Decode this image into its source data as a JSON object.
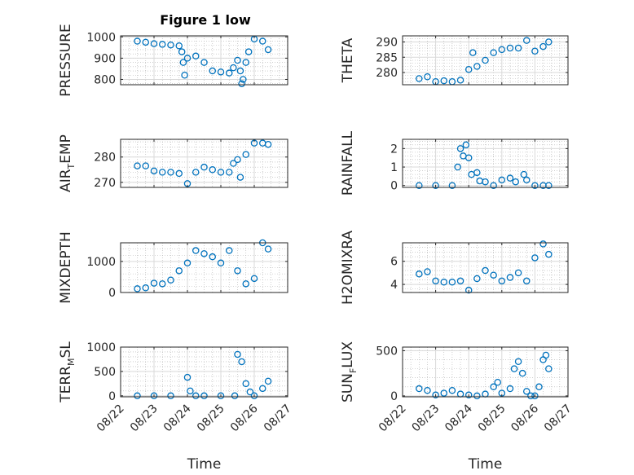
{
  "title": "Figure 1 low",
  "colors": {
    "marker": "#0072BD",
    "axis": "#262626",
    "grid": "#b0b0b0"
  },
  "time_ticks": [
    "08/22",
    "08/23",
    "08/24",
    "08/25",
    "08/26",
    "08/27"
  ],
  "time_label": "Time",
  "chart_data": [
    {
      "type": "scatter",
      "ylabel": "PRESSURE",
      "yticks": [
        800,
        900,
        1000
      ],
      "ylim": [
        775,
        1005
      ],
      "grid": true,
      "x": [
        "08/22 12:00",
        "08/22 18:00",
        "08/23 00:00",
        "08/23 06:00",
        "08/23 12:00",
        "08/23 18:00",
        "08/23 20:00",
        "08/23 21:00",
        "08/23 22:00",
        "08/24 00:00",
        "08/24 06:00",
        "08/24 12:00",
        "08/24 18:00",
        "08/25 00:00",
        "08/25 06:00",
        "08/25 09:00",
        "08/25 12:00",
        "08/25 14:00",
        "08/25 15:00",
        "08/25 16:00",
        "08/25 18:00",
        "08/25 20:00",
        "08/26 00:00",
        "08/26 06:00",
        "08/26 10:00"
      ],
      "y": [
        980,
        975,
        968,
        965,
        962,
        958,
        930,
        880,
        820,
        900,
        910,
        880,
        840,
        835,
        830,
        855,
        890,
        840,
        780,
        800,
        880,
        930,
        990,
        980,
        940
      ]
    },
    {
      "type": "scatter",
      "ylabel": "THETA",
      "yticks": [
        280,
        285,
        290
      ],
      "ylim": [
        276,
        292
      ],
      "grid": true,
      "x": [
        "08/22 12:00",
        "08/22 18:00",
        "08/23 00:00",
        "08/23 06:00",
        "08/23 12:00",
        "08/23 18:00",
        "08/24 00:00",
        "08/24 03:00",
        "08/24 06:00",
        "08/24 12:00",
        "08/24 18:00",
        "08/25 00:00",
        "08/25 06:00",
        "08/25 12:00",
        "08/25 18:00",
        "08/26 00:00",
        "08/26 06:00",
        "08/26 10:00"
      ],
      "y": [
        278,
        278.6,
        277,
        277.3,
        277,
        277.5,
        281,
        286.5,
        282,
        284,
        286.5,
        287.5,
        288,
        288,
        290.5,
        287,
        288.5,
        290
      ]
    },
    {
      "type": "scatter",
      "ylabel": "AIR_TEMP",
      "yticks": [
        270,
        280
      ],
      "ylim": [
        268,
        287
      ],
      "grid": true,
      "x": [
        "08/22 12:00",
        "08/22 18:00",
        "08/23 00:00",
        "08/23 06:00",
        "08/23 12:00",
        "08/23 18:00",
        "08/24 00:00",
        "08/24 06:00",
        "08/24 12:00",
        "08/24 18:00",
        "08/25 00:00",
        "08/25 06:00",
        "08/25 09:00",
        "08/25 12:00",
        "08/25 14:00",
        "08/25 18:00",
        "08/26 00:00",
        "08/26 06:00",
        "08/26 10:00"
      ],
      "y": [
        276.5,
        276.5,
        274.5,
        274,
        274,
        273.5,
        269.5,
        274,
        276,
        275,
        274,
        274,
        277.5,
        279,
        272,
        281,
        285.5,
        285.5,
        285
      ]
    },
    {
      "type": "scatter",
      "ylabel": "RAINFALL",
      "yticks": [
        0,
        1,
        2
      ],
      "ylim": [
        -0.1,
        2.5
      ],
      "grid": true,
      "x": [
        "08/22 12:00",
        "08/23 00:00",
        "08/23 12:00",
        "08/23 16:00",
        "08/23 18:00",
        "08/23 20:00",
        "08/23 22:00",
        "08/24 00:00",
        "08/24 02:00",
        "08/24 06:00",
        "08/24 08:00",
        "08/24 12:00",
        "08/24 18:00",
        "08/25 00:00",
        "08/25 06:00",
        "08/25 10:00",
        "08/25 16:00",
        "08/25 18:00",
        "08/26 00:00",
        "08/26 06:00",
        "08/26 10:00"
      ],
      "y": [
        0,
        0,
        0,
        1,
        2,
        1.6,
        2.2,
        1.5,
        0.6,
        0.7,
        0.25,
        0.2,
        0,
        0.3,
        0.4,
        0.2,
        0.6,
        0.3,
        0,
        0,
        0
      ]
    },
    {
      "type": "scatter",
      "ylabel": "MIXDEPTH",
      "yticks": [
        0,
        1000
      ],
      "ylim": [
        0,
        1600
      ],
      "grid": true,
      "x": [
        "08/22 12:00",
        "08/22 18:00",
        "08/23 00:00",
        "08/23 06:00",
        "08/23 12:00",
        "08/23 18:00",
        "08/24 00:00",
        "08/24 06:00",
        "08/24 12:00",
        "08/24 18:00",
        "08/25 00:00",
        "08/25 06:00",
        "08/25 12:00",
        "08/25 18:00",
        "08/26 00:00",
        "08/26 06:00",
        "08/26 10:00"
      ],
      "y": [
        120,
        150,
        300,
        280,
        400,
        700,
        950,
        1350,
        1250,
        1150,
        950,
        1350,
        700,
        280,
        450,
        1600,
        1400
      ]
    },
    {
      "type": "scatter",
      "ylabel": "H2OMIXRA",
      "yticks": [
        4,
        6
      ],
      "ylim": [
        3.3,
        7.6
      ],
      "grid": true,
      "x": [
        "08/22 12:00",
        "08/22 18:00",
        "08/23 00:00",
        "08/23 06:00",
        "08/23 12:00",
        "08/23 18:00",
        "08/24 00:00",
        "08/24 06:00",
        "08/24 12:00",
        "08/24 18:00",
        "08/25 00:00",
        "08/25 06:00",
        "08/25 12:00",
        "08/25 18:00",
        "08/26 00:00",
        "08/26 06:00",
        "08/26 10:00"
      ],
      "y": [
        4.9,
        5.1,
        4.3,
        4.2,
        4.2,
        4.3,
        3.5,
        4.5,
        5.2,
        4.8,
        4.3,
        4.6,
        5,
        4.3,
        6.3,
        7.5,
        6.6
      ]
    },
    {
      "type": "scatter",
      "ylabel": "TERR_MSL",
      "yticks": [
        0,
        500,
        1000
      ],
      "ylim": [
        -20,
        1000
      ],
      "grid": true,
      "x": [
        "08/22 12:00",
        "08/23 00:00",
        "08/23 12:00",
        "08/24 00:00",
        "08/24 02:00",
        "08/24 06:00",
        "08/24 12:00",
        "08/25 00:00",
        "08/25 10:00",
        "08/25 12:00",
        "08/25 15:00",
        "08/25 18:00",
        "08/25 21:00",
        "08/26 00:00",
        "08/26 06:00",
        "08/26 10:00"
      ],
      "y": [
        0,
        0,
        0,
        380,
        100,
        0,
        0,
        0,
        0,
        850,
        700,
        250,
        80,
        0,
        150,
        300
      ]
    },
    {
      "type": "scatter",
      "ylabel": "SUN_FLUX",
      "yticks": [
        0,
        500
      ],
      "ylim": [
        -10,
        540
      ],
      "grid": true,
      "x": [
        "08/22 12:00",
        "08/22 18:00",
        "08/23 00:00",
        "08/23 06:00",
        "08/23 12:00",
        "08/23 18:00",
        "08/24 00:00",
        "08/24 06:00",
        "08/24 12:00",
        "08/24 18:00",
        "08/24 21:00",
        "08/25 00:00",
        "08/25 06:00",
        "08/25 09:00",
        "08/25 12:00",
        "08/25 15:00",
        "08/25 18:00",
        "08/25 21:00",
        "08/26 00:00",
        "08/26 03:00",
        "08/26 06:00",
        "08/26 08:00",
        "08/26 10:00"
      ],
      "y": [
        80,
        60,
        10,
        30,
        60,
        20,
        10,
        0,
        20,
        100,
        150,
        30,
        80,
        300,
        380,
        250,
        50,
        0,
        0,
        100,
        400,
        450,
        300
      ]
    }
  ]
}
